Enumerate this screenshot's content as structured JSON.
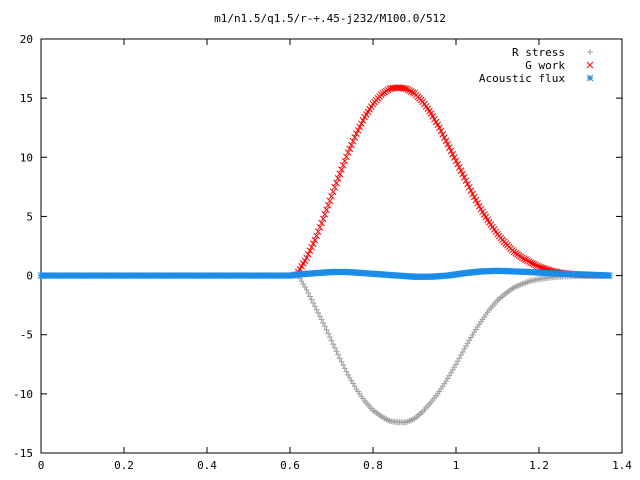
{
  "chart_data": {
    "type": "scatter",
    "title": "m1/n1.5/q1.5/r-+.45-j232/M100.0/512",
    "xlabel": "",
    "ylabel": "",
    "xlim": [
      0,
      1.4
    ],
    "ylim": [
      -15,
      20
    ],
    "xticks": [
      "0",
      "0.2",
      "0.4",
      "0.6",
      "0.8",
      "1",
      "1.2",
      "1.4"
    ],
    "yticks": [
      "-15",
      "-10",
      "-5",
      "0",
      "5",
      "10",
      "15",
      "20"
    ],
    "grid": false,
    "legend_position": "top-right",
    "series": [
      {
        "name": "R stress",
        "marker": "+",
        "color": "#a0a0a0",
        "x": [
          0.62,
          0.64,
          0.66,
          0.68,
          0.7,
          0.72,
          0.74,
          0.76,
          0.78,
          0.8,
          0.82,
          0.84,
          0.86,
          0.88,
          0.9,
          0.92,
          0.94,
          0.96,
          0.98,
          1.0,
          1.02,
          1.04,
          1.06,
          1.08,
          1.1,
          1.12,
          1.14,
          1.16,
          1.18,
          1.2,
          1.22,
          1.24,
          1.26,
          1.28,
          1.3,
          1.32,
          1.34,
          1.36
        ],
        "y": [
          0,
          -1.2,
          -2.6,
          -4.0,
          -5.5,
          -7.0,
          -8.4,
          -9.6,
          -10.6,
          -11.4,
          -11.9,
          -12.3,
          -12.4,
          -12.4,
          -12.1,
          -11.5,
          -10.7,
          -9.8,
          -8.7,
          -7.5,
          -6.2,
          -5.0,
          -3.9,
          -2.9,
          -2.1,
          -1.5,
          -1.0,
          -0.7,
          -0.45,
          -0.3,
          -0.2,
          -0.12,
          -0.08,
          -0.05,
          -0.03,
          -0.02,
          -0.01,
          0
        ]
      },
      {
        "name": "G work",
        "marker": "x",
        "color": "#ff0000",
        "x": [
          0.62,
          0.64,
          0.66,
          0.68,
          0.7,
          0.72,
          0.74,
          0.76,
          0.78,
          0.8,
          0.82,
          0.84,
          0.86,
          0.88,
          0.9,
          0.92,
          0.94,
          0.96,
          0.98,
          1.0,
          1.02,
          1.04,
          1.06,
          1.08,
          1.1,
          1.12,
          1.14,
          1.16,
          1.18,
          1.2,
          1.22,
          1.24,
          1.26,
          1.28,
          1.3,
          1.32,
          1.34,
          1.36
        ],
        "y": [
          0.3,
          1.5,
          3.0,
          4.8,
          6.7,
          8.6,
          10.4,
          12.0,
          13.4,
          14.5,
          15.3,
          15.8,
          15.9,
          15.8,
          15.4,
          14.7,
          13.7,
          12.5,
          11.1,
          9.7,
          8.3,
          6.9,
          5.6,
          4.5,
          3.5,
          2.7,
          2.0,
          1.5,
          1.1,
          0.75,
          0.5,
          0.3,
          0.2,
          0.12,
          0.07,
          0.04,
          0.02,
          0.01
        ]
      },
      {
        "name": "Acoustic flux",
        "marker": "*",
        "color": "#1a8ce8",
        "x": [
          0,
          0.1,
          0.2,
          0.3,
          0.4,
          0.5,
          0.6,
          0.62,
          0.66,
          0.7,
          0.74,
          0.78,
          0.82,
          0.86,
          0.9,
          0.94,
          0.98,
          1.02,
          1.06,
          1.1,
          1.14,
          1.18,
          1.22,
          1.26,
          1.3,
          1.34,
          1.37
        ],
        "y": [
          0,
          0,
          0,
          0,
          0,
          0,
          0,
          0.1,
          0.2,
          0.3,
          0.3,
          0.2,
          0.1,
          0.0,
          -0.1,
          -0.1,
          0.0,
          0.2,
          0.35,
          0.4,
          0.35,
          0.3,
          0.2,
          0.15,
          0.1,
          0.05,
          0
        ]
      }
    ]
  }
}
